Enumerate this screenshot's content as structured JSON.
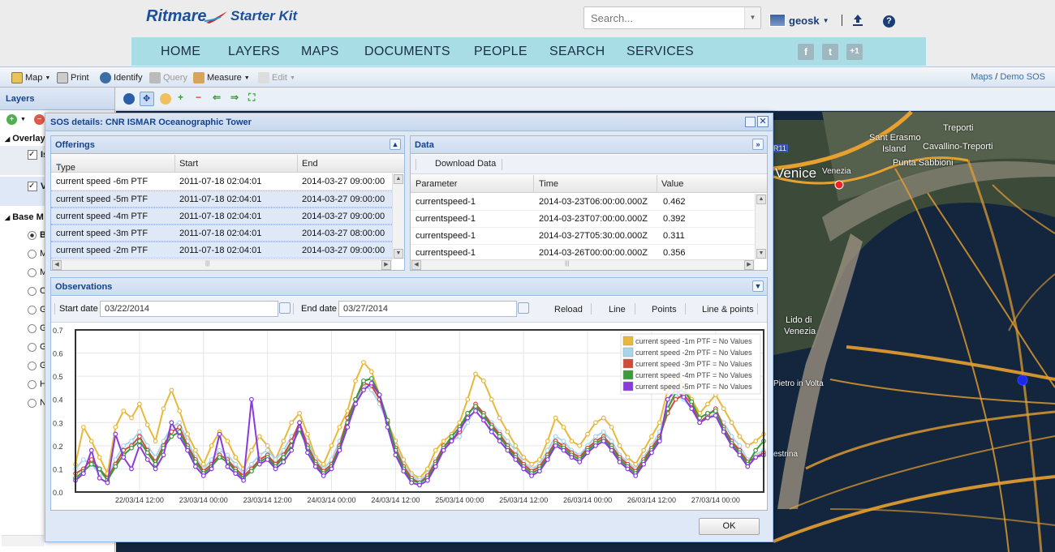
{
  "brand": {
    "name": "Ritmare",
    "product": "Starter Kit"
  },
  "search": {
    "placeholder": "Search..."
  },
  "user": {
    "name": "geosk"
  },
  "nav": {
    "items": [
      "HOME",
      "LAYERS",
      "MAPS",
      "DOCUMENTS",
      "PEOPLE",
      "SEARCH",
      "SERVICES"
    ]
  },
  "social": {
    "facebook": "f",
    "twitter": "t",
    "gplus": "+1"
  },
  "toolbar": {
    "map": "Map",
    "print": "Print",
    "identify": "Identify",
    "query": "Query",
    "measure": "Measure",
    "edit": "Edit"
  },
  "breadcrumb": {
    "maps": "Maps",
    "sep": "/",
    "current": "Demo SOS"
  },
  "layers": {
    "title": "Layers",
    "overlays": "Overlay",
    "ov1": "Is",
    "ov2": "V",
    "base": "Base M",
    "base_items": [
      "B",
      "M",
      "M",
      "O",
      "G",
      "G",
      "G",
      "G",
      "H",
      "N"
    ]
  },
  "dialog": {
    "title": "SOS details: CNR ISMAR Oceanographic Tower",
    "ok": "OK",
    "offerings": {
      "title": "Offerings",
      "columns": [
        "Type",
        "Start",
        "End"
      ],
      "rows": [
        [
          "current speed -6m PTF",
          "2011-07-18 02:04:01",
          "2014-03-27 09:00:00"
        ],
        [
          "current speed -5m PTF",
          "2011-07-18 02:04:01",
          "2014-03-27 09:00:00"
        ],
        [
          "current speed -4m PTF",
          "2011-07-18 02:04:01",
          "2014-03-27 09:00:00"
        ],
        [
          "current speed -3m PTF",
          "2011-07-18 02:04:01",
          "2014-03-27 08:00:00"
        ],
        [
          "current speed -2m PTF",
          "2011-07-18 02:04:01",
          "2014-03-27 09:00:00"
        ]
      ]
    },
    "data": {
      "title": "Data",
      "download": "Download Data",
      "columns": [
        "Parameter",
        "Time",
        "Value"
      ],
      "rows": [
        [
          "currentspeed-1",
          "2014-03-23T06:00:00.000Z",
          "0.462"
        ],
        [
          "currentspeed-1",
          "2014-03-23T07:00:00.000Z",
          "0.392"
        ],
        [
          "currentspeed-1",
          "2014-03-27T05:30:00.000Z",
          "0.311"
        ],
        [
          "currentspeed-1",
          "2014-03-26T00:00:00.000Z",
          "0.356"
        ]
      ]
    },
    "observations": {
      "title": "Observations",
      "start_label": "Start date",
      "start_value": "03/22/2014",
      "end_label": "End date",
      "end_value": "03/27/2014",
      "reload": "Reload",
      "line": "Line",
      "points": "Points",
      "line_points": "Line & points"
    }
  },
  "map_labels": {
    "venice": "Venice",
    "venezia": "Venezia",
    "treporti": "Treporti",
    "sant_erasmo": "Sant Erasmo",
    "island": "Island",
    "cavallino": "Cavallino-Treporti",
    "punta": "Punta Sabbioni",
    "lido": "Lido di",
    "lido2": "Venezia",
    "pietro": "Pietro in Volta",
    "estrina": "estrina",
    "r11": "R11"
  },
  "chart_data": {
    "type": "line",
    "title": "",
    "xlabel": "",
    "ylabel": "",
    "ylim": [
      0,
      0.7
    ],
    "yticks": [
      0.0,
      0.1,
      0.2,
      0.3,
      0.4,
      0.5,
      0.6,
      0.7
    ],
    "xtick_labels": [
      "22/03/14 12:00",
      "23/03/14 00:00",
      "23/03/14 12:00",
      "24/03/14 00:00",
      "24/03/14 12:00",
      "25/03/14 00:00",
      "25/03/14 12:00",
      "26/03/14 00:00",
      "26/03/14 12:00",
      "27/03/14 00:00"
    ],
    "xtick_hours": [
      12,
      24,
      36,
      48,
      60,
      72,
      84,
      96,
      108,
      120
    ],
    "xlim_hours": [
      0,
      129
    ],
    "x_hours": [
      0,
      1.5,
      3,
      4.5,
      6,
      7.5,
      9,
      10.5,
      12,
      13.5,
      15,
      16.5,
      18,
      19.5,
      21,
      22.5,
      24,
      25.5,
      27,
      28.5,
      30,
      31.5,
      33,
      34.5,
      36,
      37.5,
      39,
      40.5,
      42,
      43.5,
      45,
      46.5,
      48,
      49.5,
      51,
      52.5,
      54,
      55.5,
      57,
      58.5,
      60,
      61.5,
      63,
      64.5,
      66,
      67.5,
      69,
      70.5,
      72,
      73.5,
      75,
      76.5,
      78,
      79.5,
      81,
      82.5,
      84,
      85.5,
      87,
      88.5,
      90,
      91.5,
      93,
      94.5,
      96,
      97.5,
      99,
      100.5,
      102,
      103.5,
      105,
      106.5,
      108,
      109.5,
      111,
      112.5,
      114,
      115.5,
      117,
      118.5,
      120,
      121.5,
      123,
      124.5,
      126,
      127.5,
      129
    ],
    "series": [
      {
        "name": "current speed -1m PTF = No Values",
        "color": "#e8b83a",
        "values": [
          0.12,
          0.28,
          0.22,
          0.15,
          0.08,
          0.28,
          0.35,
          0.32,
          0.38,
          0.29,
          0.22,
          0.36,
          0.44,
          0.35,
          0.25,
          0.18,
          0.12,
          0.2,
          0.26,
          0.22,
          0.15,
          0.1,
          0.18,
          0.24,
          0.2,
          0.14,
          0.22,
          0.3,
          0.34,
          0.25,
          0.15,
          0.12,
          0.2,
          0.28,
          0.35,
          0.48,
          0.56,
          0.52,
          0.42,
          0.3,
          0.22,
          0.14,
          0.08,
          0.06,
          0.1,
          0.18,
          0.22,
          0.25,
          0.3,
          0.4,
          0.51,
          0.48,
          0.4,
          0.32,
          0.26,
          0.2,
          0.15,
          0.12,
          0.14,
          0.22,
          0.32,
          0.28,
          0.22,
          0.2,
          0.25,
          0.3,
          0.32,
          0.28,
          0.2,
          0.15,
          0.12,
          0.18,
          0.24,
          0.3,
          0.44,
          0.5,
          0.46,
          0.4,
          0.34,
          0.38,
          0.42,
          0.36,
          0.3,
          0.24,
          0.2,
          0.22,
          0.25
        ]
      },
      {
        "name": "current speed -2m PTF = No Values",
        "color": "#a9d4ee",
        "values": [
          0.1,
          0.14,
          0.12,
          0.08,
          0.06,
          0.14,
          0.2,
          0.22,
          0.26,
          0.2,
          0.15,
          0.22,
          0.28,
          0.3,
          0.22,
          0.15,
          0.1,
          0.14,
          0.18,
          0.16,
          0.12,
          0.08,
          0.12,
          0.16,
          0.18,
          0.14,
          0.18,
          0.24,
          0.28,
          0.22,
          0.14,
          0.1,
          0.14,
          0.22,
          0.3,
          0.38,
          0.46,
          0.44,
          0.38,
          0.3,
          0.2,
          0.12,
          0.07,
          0.05,
          0.08,
          0.14,
          0.18,
          0.22,
          0.24,
          0.3,
          0.36,
          0.34,
          0.3,
          0.26,
          0.22,
          0.18,
          0.13,
          0.1,
          0.12,
          0.18,
          0.24,
          0.22,
          0.18,
          0.16,
          0.2,
          0.24,
          0.26,
          0.22,
          0.16,
          0.13,
          0.1,
          0.15,
          0.2,
          0.26,
          0.36,
          0.42,
          0.4,
          0.36,
          0.3,
          0.32,
          0.34,
          0.3,
          0.24,
          0.2,
          0.14,
          0.16,
          0.18
        ]
      },
      {
        "name": "current speed -3m PTF = No Values",
        "color": "#d04a3a",
        "values": [
          0.08,
          0.1,
          0.14,
          0.1,
          0.06,
          0.12,
          0.18,
          0.2,
          0.24,
          0.18,
          0.13,
          0.2,
          0.26,
          0.28,
          0.2,
          0.14,
          0.09,
          0.12,
          0.16,
          0.14,
          0.1,
          0.07,
          0.1,
          0.14,
          0.16,
          0.12,
          0.16,
          0.22,
          0.3,
          0.2,
          0.13,
          0.09,
          0.12,
          0.2,
          0.32,
          0.4,
          0.47,
          0.46,
          0.4,
          0.3,
          0.19,
          0.11,
          0.06,
          0.04,
          0.07,
          0.13,
          0.2,
          0.22,
          0.26,
          0.33,
          0.38,
          0.34,
          0.29,
          0.25,
          0.2,
          0.16,
          0.12,
          0.09,
          0.11,
          0.16,
          0.22,
          0.2,
          0.17,
          0.15,
          0.19,
          0.22,
          0.24,
          0.2,
          0.15,
          0.12,
          0.09,
          0.14,
          0.19,
          0.24,
          0.34,
          0.4,
          0.42,
          0.38,
          0.3,
          0.33,
          0.36,
          0.28,
          0.22,
          0.18,
          0.13,
          0.15,
          0.17
        ]
      },
      {
        "name": "current speed -4m PTF = No Values",
        "color": "#3a9a3c",
        "values": [
          0.06,
          0.09,
          0.12,
          0.1,
          0.05,
          0.11,
          0.16,
          0.19,
          0.22,
          0.17,
          0.12,
          0.19,
          0.24,
          0.26,
          0.19,
          0.13,
          0.08,
          0.11,
          0.15,
          0.13,
          0.09,
          0.06,
          0.09,
          0.13,
          0.15,
          0.11,
          0.15,
          0.2,
          0.27,
          0.19,
          0.12,
          0.08,
          0.11,
          0.19,
          0.3,
          0.4,
          0.48,
          0.49,
          0.42,
          0.31,
          0.18,
          0.1,
          0.05,
          0.04,
          0.06,
          0.12,
          0.19,
          0.24,
          0.28,
          0.34,
          0.37,
          0.33,
          0.28,
          0.24,
          0.19,
          0.15,
          0.11,
          0.08,
          0.1,
          0.15,
          0.21,
          0.19,
          0.16,
          0.14,
          0.18,
          0.21,
          0.23,
          0.19,
          0.14,
          0.11,
          0.08,
          0.13,
          0.18,
          0.23,
          0.36,
          0.43,
          0.44,
          0.39,
          0.32,
          0.34,
          0.35,
          0.27,
          0.21,
          0.17,
          0.12,
          0.18,
          0.22
        ]
      },
      {
        "name": "current speed -5m PTF = No Values",
        "color": "#8a3adc",
        "values": [
          0.05,
          0.08,
          0.18,
          0.06,
          0.04,
          0.25,
          0.15,
          0.1,
          0.2,
          0.14,
          0.1,
          0.16,
          0.3,
          0.24,
          0.18,
          0.11,
          0.07,
          0.1,
          0.25,
          0.11,
          0.08,
          0.05,
          0.4,
          0.12,
          0.14,
          0.1,
          0.13,
          0.18,
          0.3,
          0.17,
          0.11,
          0.07,
          0.1,
          0.18,
          0.28,
          0.38,
          0.44,
          0.47,
          0.42,
          0.28,
          0.16,
          0.09,
          0.04,
          0.03,
          0.05,
          0.11,
          0.18,
          0.22,
          0.27,
          0.32,
          0.35,
          0.31,
          0.26,
          0.22,
          0.18,
          0.14,
          0.1,
          0.07,
          0.09,
          0.14,
          0.2,
          0.18,
          0.15,
          0.13,
          0.17,
          0.2,
          0.22,
          0.18,
          0.13,
          0.1,
          0.07,
          0.12,
          0.17,
          0.22,
          0.4,
          0.44,
          0.41,
          0.36,
          0.3,
          0.32,
          0.33,
          0.26,
          0.2,
          0.16,
          0.11,
          0.15,
          0.16
        ]
      }
    ]
  }
}
